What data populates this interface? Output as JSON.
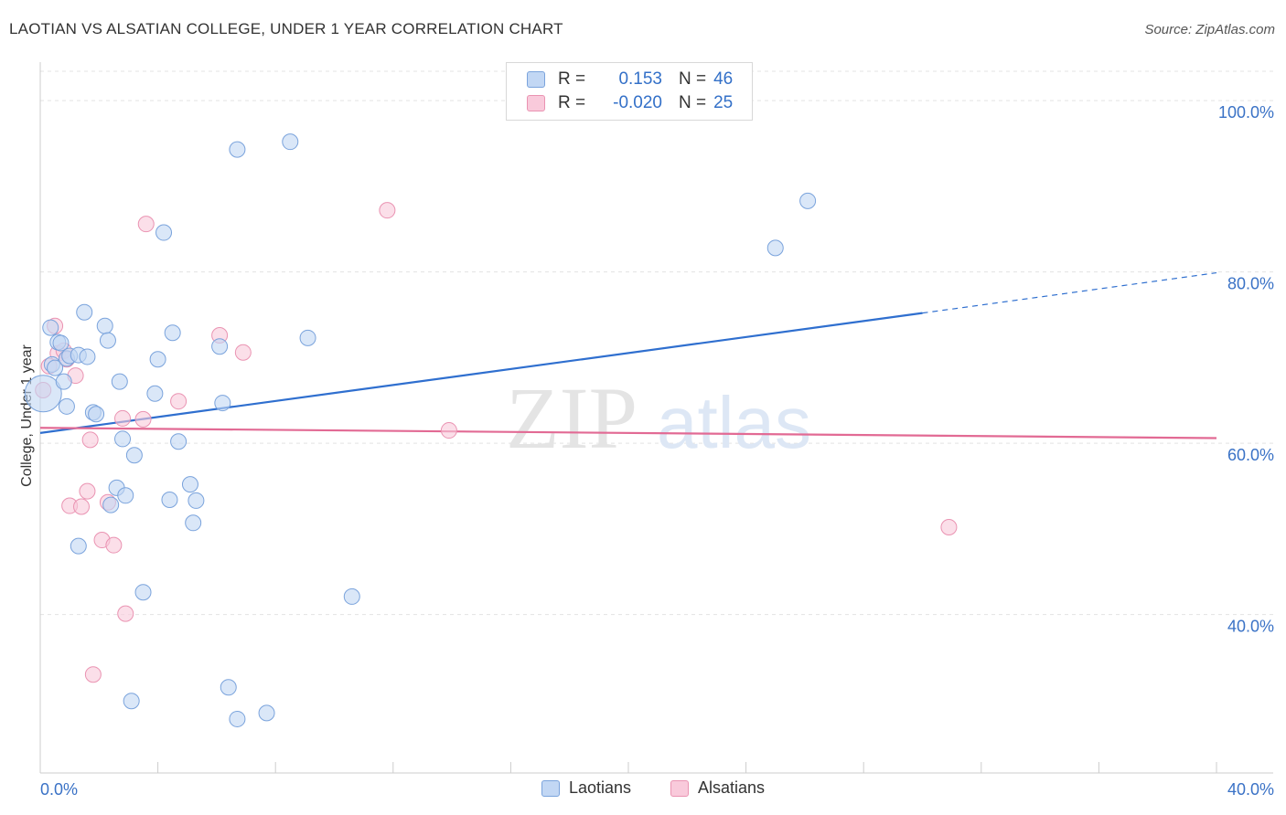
{
  "title": "LAOTIAN VS ALSATIAN COLLEGE, UNDER 1 YEAR CORRELATION CHART",
  "source": "Source: ZipAtlas.com",
  "watermark": {
    "zip": "ZIP",
    "atlas": "atlas"
  },
  "stats": {
    "laotians": {
      "r_label": "R =",
      "r_value": "0.153",
      "n_label": "N =",
      "n_value": "46"
    },
    "alsatians": {
      "r_label": "R =",
      "r_value": "-0.020",
      "n_label": "N =",
      "n_value": "25"
    }
  },
  "legend": {
    "laotians": "Laotians",
    "alsatians": "Alsatians"
  },
  "colors": {
    "laotians_fill": "#c2d7f4",
    "laotians_stroke": "#7aa3dc",
    "laotians_line": "#2f6fcf",
    "alsatians_fill": "#f9cadb",
    "alsatians_stroke": "#ea93b2",
    "alsatians_line": "#e26a94",
    "axis_text": "#3a72c6",
    "grid": "#e3e3e3"
  },
  "chart_data": {
    "type": "scatter",
    "title": "LAOTIAN VS ALSATIAN COLLEGE, UNDER 1 YEAR CORRELATION CHART",
    "xlabel": "",
    "ylabel": "College, Under 1 year",
    "xlim": [
      0,
      40
    ],
    "ylim": [
      21.5,
      104.5
    ],
    "x_tick_labels": [
      "0.0%",
      "40.0%"
    ],
    "y_ticks": [
      40,
      60,
      80,
      100
    ],
    "y_tick_labels": [
      "40.0%",
      "60.0%",
      "80.0%",
      "100.0%"
    ],
    "grid": true,
    "legend_position": "bottom-center",
    "series": [
      {
        "name": "Laotians",
        "points": [
          [
            0.1,
            65.8
          ],
          [
            0.35,
            73.5
          ],
          [
            0.4,
            69.2
          ],
          [
            0.5,
            68.8
          ],
          [
            0.6,
            71.8
          ],
          [
            0.7,
            71.7
          ],
          [
            0.8,
            67.2
          ],
          [
            0.9,
            69.9
          ],
          [
            1.0,
            70.2
          ],
          [
            1.3,
            70.3
          ],
          [
            1.6,
            70.1
          ],
          [
            1.5,
            75.3
          ],
          [
            1.8,
            63.6
          ],
          [
            1.9,
            63.4
          ],
          [
            2.2,
            73.7
          ],
          [
            2.3,
            72.0
          ],
          [
            2.4,
            52.8
          ],
          [
            2.6,
            54.8
          ],
          [
            2.7,
            67.2
          ],
          [
            2.8,
            60.5
          ],
          [
            2.9,
            53.9
          ],
          [
            1.3,
            48.0
          ],
          [
            3.2,
            58.6
          ],
          [
            3.5,
            42.6
          ],
          [
            3.9,
            65.8
          ],
          [
            4.0,
            69.8
          ],
          [
            4.2,
            84.6
          ],
          [
            4.4,
            53.4
          ],
          [
            4.5,
            72.9
          ],
          [
            4.7,
            60.2
          ],
          [
            5.1,
            55.2
          ],
          [
            5.2,
            50.7
          ],
          [
            5.3,
            53.3
          ],
          [
            6.1,
            71.3
          ],
          [
            6.2,
            64.7
          ],
          [
            3.1,
            29.9
          ],
          [
            6.4,
            31.5
          ],
          [
            6.7,
            94.3
          ],
          [
            6.7,
            27.8
          ],
          [
            7.7,
            28.5
          ],
          [
            8.5,
            95.2
          ],
          [
            9.1,
            72.3
          ],
          [
            10.6,
            42.1
          ],
          [
            25.0,
            82.8
          ],
          [
            26.1,
            88.3
          ],
          [
            0.9,
            64.3
          ]
        ],
        "trend": {
          "x0": 0,
          "y0": 61.2,
          "x1": 30,
          "y1": 75.2,
          "x_dash_end": 40,
          "y_dash_end": 79.9
        }
      },
      {
        "name": "Alsatians",
        "points": [
          [
            0.1,
            66.2
          ],
          [
            0.3,
            69.0
          ],
          [
            0.5,
            73.7
          ],
          [
            0.6,
            70.5
          ],
          [
            0.8,
            70.8
          ],
          [
            0.9,
            69.8
          ],
          [
            1.0,
            52.7
          ],
          [
            1.2,
            67.9
          ],
          [
            1.4,
            52.6
          ],
          [
            1.6,
            54.4
          ],
          [
            1.7,
            60.4
          ],
          [
            1.8,
            33.0
          ],
          [
            2.1,
            48.7
          ],
          [
            2.3,
            53.1
          ],
          [
            2.5,
            48.1
          ],
          [
            2.8,
            62.9
          ],
          [
            2.9,
            40.1
          ],
          [
            3.5,
            62.8
          ],
          [
            3.6,
            85.6
          ],
          [
            4.7,
            64.9
          ],
          [
            6.1,
            72.6
          ],
          [
            6.9,
            70.6
          ],
          [
            11.8,
            87.2
          ],
          [
            13.9,
            61.5
          ],
          [
            30.9,
            50.2
          ]
        ],
        "trend": {
          "x0": 0,
          "y0": 61.8,
          "x1": 40,
          "y1": 60.6
        }
      }
    ]
  }
}
